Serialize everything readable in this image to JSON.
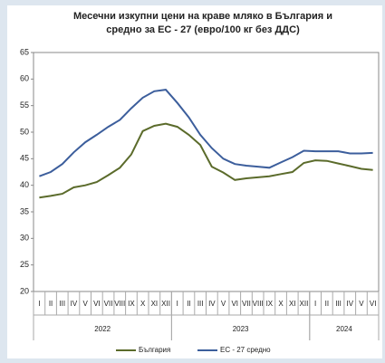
{
  "chart_data": {
    "type": "line",
    "title": "Месечни изкупни цени на краве мляко в България и",
    "subtitle": "средно за ЕС - 27 (евро/100 кг без ДДС)",
    "categories": [
      "I",
      "II",
      "III",
      "IV",
      "V",
      "VI",
      "VII",
      "VIII",
      "IX",
      "X",
      "XI",
      "XII",
      "I",
      "II",
      "III",
      "IV",
      "V",
      "VI",
      "VII",
      "VIII",
      "IX",
      "X",
      "XI",
      "XII",
      "I",
      "II",
      "III",
      "IV",
      "V",
      "VI"
    ],
    "groups": [
      {
        "label": "2022",
        "count": 12
      },
      {
        "label": "2023",
        "count": 12
      },
      {
        "label": "2024",
        "count": 6
      }
    ],
    "series": [
      {
        "name": "България",
        "color": "#5b6b2b",
        "values": [
          37.7,
          38.0,
          38.4,
          39.6,
          40.0,
          40.6,
          41.9,
          43.3,
          45.8,
          50.2,
          51.2,
          51.6,
          51.0,
          49.5,
          47.6,
          43.5,
          42.4,
          41.0,
          41.3,
          41.5,
          41.7,
          42.1,
          42.5,
          44.2,
          44.7,
          44.6,
          44.1,
          43.6,
          43.1,
          42.9
        ]
      },
      {
        "name": "ЕС - 27 средно",
        "color": "#3c5e9c",
        "values": [
          41.7,
          42.5,
          44.0,
          46.2,
          48.1,
          49.5,
          51.0,
          52.3,
          54.5,
          56.5,
          57.7,
          58.0,
          55.5,
          52.8,
          49.5,
          47.0,
          45.0,
          44.0,
          43.7,
          43.5,
          43.3,
          44.3,
          45.3,
          46.5,
          46.4,
          46.4,
          46.4,
          46.0,
          46.0,
          46.1
        ]
      }
    ],
    "ylim": [
      20,
      65
    ],
    "yticks": [
      20,
      25,
      30,
      35,
      40,
      45,
      50,
      55,
      60,
      65
    ],
    "grid": false
  }
}
